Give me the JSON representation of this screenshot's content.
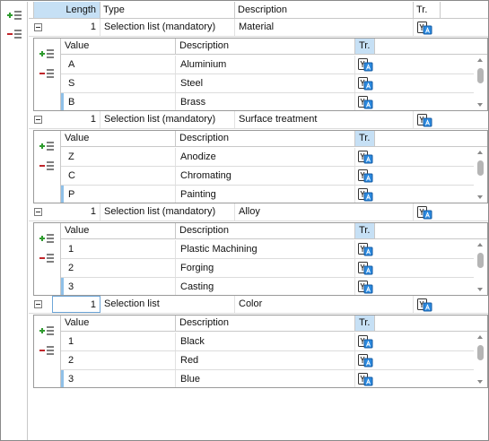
{
  "header": {
    "length": "Length",
    "type": "Type",
    "description": "Description",
    "tr": "Tr."
  },
  "sub_header": {
    "value": "Value",
    "description": "Description",
    "tr": "Tr."
  },
  "icons": {
    "add": "add-list-icon",
    "remove": "remove-list-icon",
    "translate": "translate-icon"
  },
  "colors": {
    "add": "#2e9b2e",
    "remove": "#c0262b",
    "selected_header": "#c6e0f5",
    "marker": "#8fc0e8"
  },
  "groups": [
    {
      "length": "1",
      "type": "Selection list (mandatory)",
      "description": "Material",
      "rows": [
        {
          "value": "A",
          "description": "Aluminium"
        },
        {
          "value": "S",
          "description": "Steel"
        },
        {
          "value": "B",
          "description": "Brass"
        }
      ]
    },
    {
      "length": "1",
      "type": "Selection list (mandatory)",
      "description": "Surface treatment",
      "rows": [
        {
          "value": "Z",
          "description": "Anodize"
        },
        {
          "value": "C",
          "description": "Chromating"
        },
        {
          "value": "P",
          "description": "Painting"
        }
      ]
    },
    {
      "length": "1",
      "type": "Selection list (mandatory)",
      "description": "Alloy",
      "rows": [
        {
          "value": "1",
          "description": "Plastic Machining"
        },
        {
          "value": "2",
          "description": "Forging"
        },
        {
          "value": "3",
          "description": "Casting"
        }
      ]
    },
    {
      "length": "1",
      "type": "Selection list",
      "description": "Color",
      "rows": [
        {
          "value": "1",
          "description": "Black"
        },
        {
          "value": "2",
          "description": "Red"
        },
        {
          "value": "3",
          "description": "Blue"
        }
      ]
    }
  ]
}
